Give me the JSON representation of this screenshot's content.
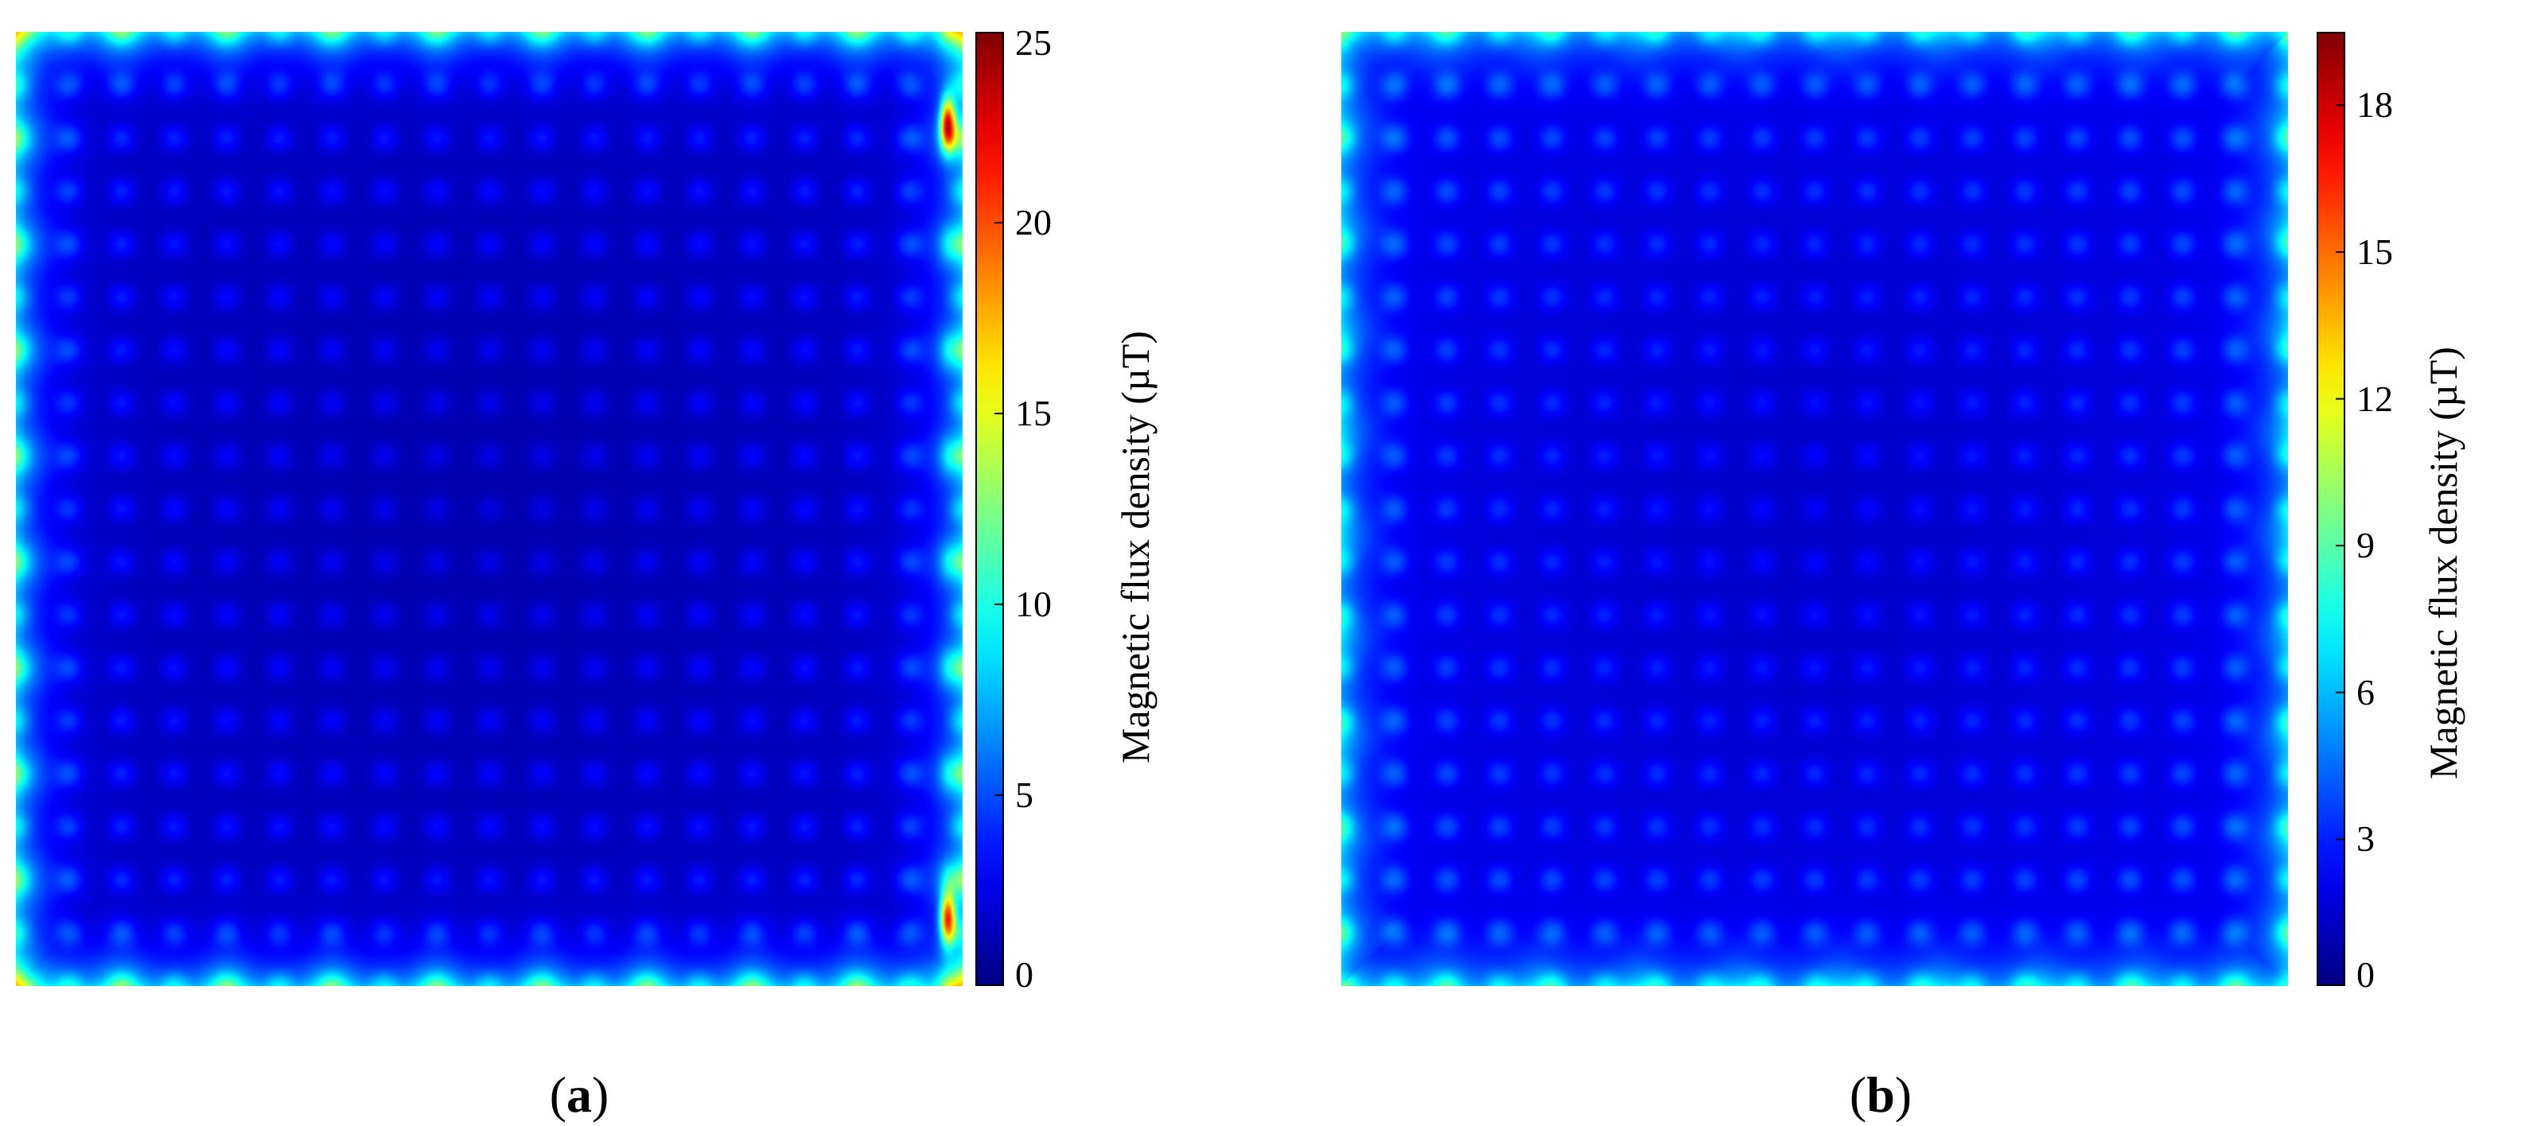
{
  "chart_data": [
    {
      "type": "heatmap",
      "panel_label_open": "(",
      "panel_label_letter": "a",
      "panel_label_close": ")",
      "colorbar": {
        "label": "Magnetic flux density (µT)",
        "ticks": [
          "0",
          "5",
          "10",
          "15",
          "20",
          "25"
        ],
        "tick_values": [
          0,
          5,
          10,
          15,
          20,
          25
        ],
        "range": [
          0,
          25
        ],
        "colormap": "jet"
      },
      "field": {
        "description_grid": "square coil array",
        "interior_value": 1.5,
        "cell_hotspot_value": 3.5,
        "edge_value": 9,
        "corner_value": 13,
        "peak_value": 25,
        "peak_positions": [
          "right-edge-upper",
          "right-edge-lower"
        ]
      }
    },
    {
      "type": "heatmap",
      "panel_label_open": "(",
      "panel_label_letter": "b",
      "panel_label_close": ")",
      "colorbar": {
        "label": "Magnetic flux density (µT)",
        "ticks": [
          "0",
          "3",
          "6",
          "9",
          "12",
          "15",
          "18"
        ],
        "tick_values": [
          0,
          3,
          6,
          9,
          12,
          15,
          18
        ],
        "range": [
          0,
          19.5
        ],
        "colormap": "jet"
      },
      "field": {
        "description_grid": "square coil array",
        "interior_value": 1.8,
        "cell_hotspot_value": 3.5,
        "edge_value": 6.5,
        "corner_value": 7,
        "peak_value": 7.5,
        "peak_positions": []
      }
    }
  ]
}
